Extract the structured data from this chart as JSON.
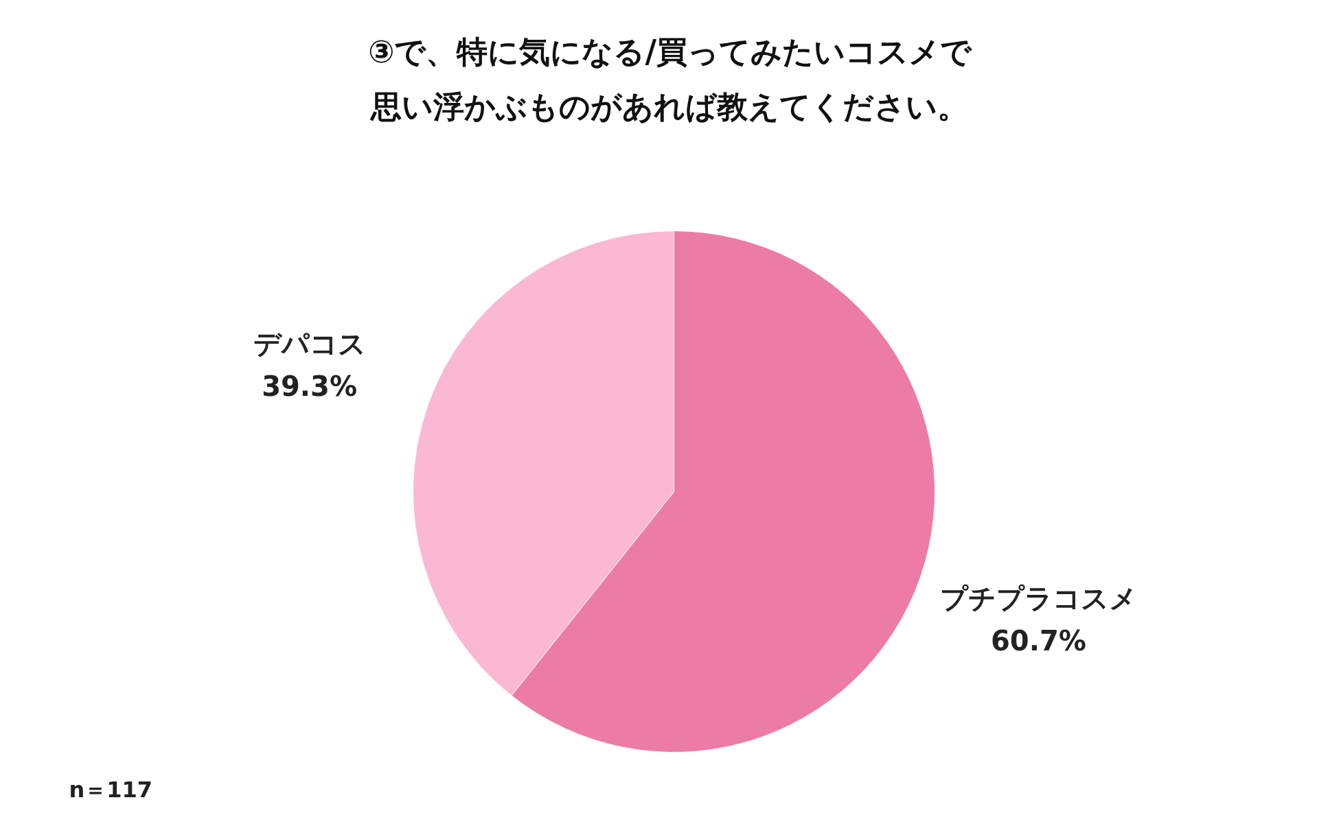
{
  "chart_data": {
    "type": "pie",
    "title": "③で、特に気になる/買ってみたいコスメで思い浮かぶものがあれば教えてください。",
    "categories": [
      "プチプラコスメ",
      "デパコス"
    ],
    "values": [
      60.7,
      39.3
    ],
    "value_labels": [
      "60.7%",
      "39.3%"
    ],
    "colors": [
      "#ec7ca5",
      "#fbb8d2"
    ],
    "annotations": [
      "n＝117"
    ]
  }
}
